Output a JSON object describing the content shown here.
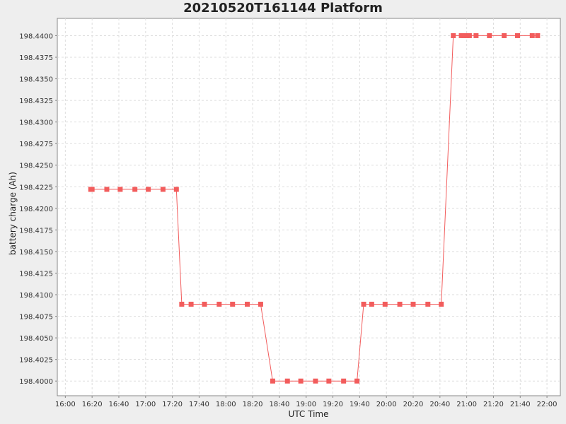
{
  "chart_data": {
    "type": "line",
    "title": "20210520T161144 Platform",
    "xlabel": "UTC Time",
    "ylabel": "battery charge (Ah)",
    "x_ticks": [
      "16:00",
      "16:20",
      "16:40",
      "17:00",
      "17:20",
      "17:40",
      "18:00",
      "18:20",
      "18:40",
      "19:00",
      "19:20",
      "19:40",
      "20:00",
      "20:20",
      "20:40",
      "21:00",
      "21:20",
      "21:40",
      "22:00"
    ],
    "y_ticks": [
      "198.4000",
      "198.4025",
      "198.4050",
      "198.4075",
      "198.4100",
      "198.4125",
      "198.4150",
      "198.4175",
      "198.4200",
      "198.4225",
      "198.4250",
      "198.4275",
      "198.4300",
      "198.4325",
      "198.4350",
      "198.4375",
      "198.4400"
    ],
    "xlim": [
      "15:54",
      "22:10"
    ],
    "ylim": [
      198.3983,
      198.442
    ],
    "grid": true,
    "series_color": "#f25c5c",
    "x": [
      "16:19",
      "16:20",
      "16:31",
      "16:41",
      "16:52",
      "17:02",
      "17:13",
      "17:23",
      "17:27",
      "17:34",
      "17:44",
      "17:55",
      "18:05",
      "18:16",
      "18:26",
      "18:35",
      "18:46",
      "18:56",
      "19:07",
      "19:17",
      "19:28",
      "19:38",
      "19:43",
      "19:49",
      "19:59",
      "20:10",
      "20:20",
      "20:31",
      "20:41",
      "20:50",
      "20:56",
      "20:58",
      "21:00",
      "21:02",
      "21:07",
      "21:17",
      "21:28",
      "21:38",
      "21:49",
      "21:53"
    ],
    "y": [
      198.4222,
      198.4222,
      198.4222,
      198.4222,
      198.4222,
      198.4222,
      198.4222,
      198.4222,
      198.4089,
      198.4089,
      198.4089,
      198.4089,
      198.4089,
      198.4089,
      198.4089,
      198.4,
      198.4,
      198.4,
      198.4,
      198.4,
      198.4,
      198.4,
      198.4089,
      198.4089,
      198.4089,
      198.4089,
      198.4089,
      198.4089,
      198.4089,
      198.44,
      198.44,
      198.44,
      198.44,
      198.44,
      198.44,
      198.44,
      198.44,
      198.44,
      198.44,
      198.44
    ]
  }
}
